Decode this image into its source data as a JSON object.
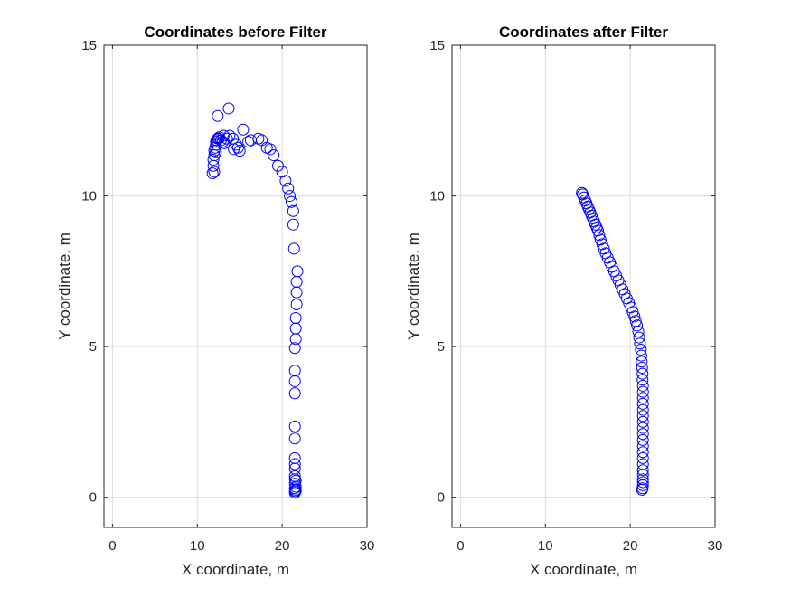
{
  "chart_data": [
    {
      "type": "scatter",
      "title": "Coordinates before Filter",
      "xlabel": "X coordinate, m",
      "ylabel": "Y coordinate, m",
      "xlim": [
        -1,
        30
      ],
      "ylim": [
        -1,
        15
      ],
      "xticks": [
        0,
        10,
        20,
        30
      ],
      "yticks": [
        0,
        5,
        10,
        15
      ],
      "grid": true,
      "marker": "open-circle",
      "color": "#0000ff",
      "x": [
        11.8,
        12.0,
        11.9,
        11.9,
        12.0,
        12.0,
        12.1,
        12.2,
        12.2,
        12.3,
        12.4,
        12.2,
        12.5,
        12.6,
        12.8,
        13.0,
        13.2,
        13.5,
        13.8,
        14.2,
        14.6,
        15.0,
        14.3,
        14.8,
        13.1,
        13.7,
        12.4,
        15.4,
        16.0,
        16.3,
        17.2,
        17.6,
        18.2,
        18.6,
        19.0,
        19.5,
        20.0,
        20.4,
        20.7,
        20.9,
        21.1,
        21.3,
        21.3,
        21.4,
        21.8,
        21.7,
        21.7,
        21.7,
        21.6,
        21.6,
        21.6,
        21.5,
        21.5,
        21.5,
        21.5,
        21.5,
        21.5,
        21.5,
        21.5,
        21.5,
        21.5,
        21.5,
        21.6,
        21.5,
        21.6,
        21.5,
        21.6,
        21.5,
        21.6,
        21.5
      ],
      "y": [
        10.75,
        10.8,
        11.0,
        11.2,
        11.35,
        11.5,
        11.6,
        11.7,
        11.8,
        11.85,
        11.9,
        11.45,
        11.9,
        11.95,
        11.85,
        11.8,
        11.75,
        11.9,
        12.0,
        11.9,
        11.7,
        11.5,
        11.55,
        11.6,
        12.0,
        12.9,
        12.65,
        12.2,
        11.8,
        11.85,
        11.9,
        11.85,
        11.6,
        11.55,
        11.35,
        11.0,
        10.8,
        10.5,
        10.25,
        10.0,
        9.8,
        9.5,
        9.05,
        8.25,
        7.5,
        7.15,
        6.8,
        6.4,
        5.95,
        5.6,
        5.25,
        4.95,
        4.2,
        3.85,
        3.45,
        2.35,
        1.95,
        1.3,
        1.1,
        0.95,
        0.7,
        0.6,
        0.55,
        0.45,
        0.35,
        0.3,
        0.25,
        0.2,
        0.2,
        0.15
      ]
    },
    {
      "type": "scatter",
      "title": "Coordinates after Filter",
      "xlabel": "X coordinate, m",
      "ylabel": "Y coordinate, m",
      "xlim": [
        -1,
        30
      ],
      "ylim": [
        -1,
        15
      ],
      "xticks": [
        0,
        10,
        20,
        30
      ],
      "yticks": [
        0,
        5,
        10,
        15
      ],
      "grid": true,
      "marker": "open-circle",
      "color": "#0000ff",
      "x": [
        14.3,
        14.4,
        14.55,
        14.7,
        14.85,
        15.0,
        15.15,
        15.3,
        15.45,
        15.6,
        15.75,
        15.9,
        16.05,
        16.2,
        16.35,
        16.5,
        16.7,
        16.9,
        17.1,
        17.35,
        17.6,
        17.85,
        18.1,
        18.35,
        18.6,
        18.85,
        19.1,
        19.35,
        19.6,
        19.85,
        20.1,
        20.3,
        20.5,
        20.65,
        20.8,
        20.95,
        21.05,
        21.15,
        21.25,
        21.3,
        21.35,
        21.4,
        21.45,
        21.45,
        21.5,
        21.5,
        21.5,
        21.5,
        21.5,
        21.5,
        21.5,
        21.5,
        21.5,
        21.5,
        21.5,
        21.5,
        21.5,
        21.5,
        21.5,
        21.5,
        21.5,
        21.5,
        21.5,
        21.45,
        21.4
      ],
      "y": [
        10.1,
        10.05,
        9.95,
        9.85,
        9.75,
        9.65,
        9.55,
        9.45,
        9.35,
        9.25,
        9.15,
        9.05,
        8.95,
        8.85,
        8.7,
        8.55,
        8.4,
        8.25,
        8.1,
        7.95,
        7.8,
        7.65,
        7.5,
        7.35,
        7.2,
        7.05,
        6.9,
        6.75,
        6.6,
        6.45,
        6.3,
        6.15,
        6.0,
        5.85,
        5.7,
        5.5,
        5.3,
        5.1,
        4.9,
        4.7,
        4.5,
        4.3,
        4.1,
        3.9,
        3.7,
        3.5,
        3.3,
        3.1,
        2.9,
        2.7,
        2.5,
        2.3,
        2.1,
        1.9,
        1.7,
        1.5,
        1.3,
        1.1,
        0.9,
        0.75,
        0.6,
        0.5,
        0.4,
        0.3,
        0.25
      ]
    }
  ]
}
